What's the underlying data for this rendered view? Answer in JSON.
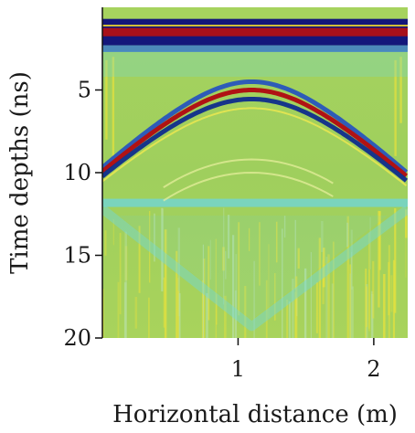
{
  "chart_data": {
    "type": "heatmap",
    "title": "",
    "xlabel": "Horizontal distance (m)",
    "ylabel": "Time depths (ns)",
    "xlim": [
      0,
      2.25
    ],
    "ylim": [
      20,
      0
    ],
    "x_ticks": [
      "1",
      "2"
    ],
    "x_tick_values": [
      1,
      2
    ],
    "y_ticks": [
      "5",
      "10",
      "15",
      "20"
    ],
    "y_tick_values": [
      5,
      10,
      15,
      20
    ],
    "colormap": "jet",
    "colors": {
      "background": "#9ecf5a",
      "direct_wave_dark_blue": "#14167a",
      "direct_wave_red": "#a8101a",
      "hyperbola_red": "#b01214",
      "hyperbola_blue": "#0f2c8c",
      "cyan_reflection": "#6ed6de",
      "yellow_noise": "#e8e23c"
    },
    "features": {
      "direct_wave_times": [
        1.2,
        1.5,
        1.8
      ],
      "hyperbola": {
        "apex_x": 1.1,
        "apex_time": 5.0,
        "slope": 7.8
      },
      "horizontal_reflector_time": 11.8,
      "diffraction_apex_time": 19.3
    }
  }
}
